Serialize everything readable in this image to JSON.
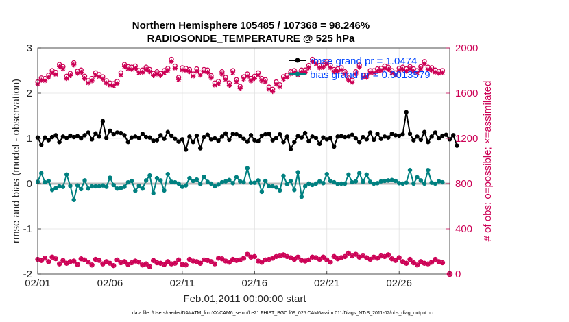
{
  "chart_data": {
    "type": "line",
    "title_line1": "Northern Hemisphere 105485 / 107368 = 98.246%",
    "title_line2": "RADIOSONDE_TEMPERATURE @ 525 hPa",
    "xlabel": "Feb.01,2011 00:00:00 start",
    "ylabel_left": "rmse and bias (model - observation)",
    "ylabel_right": "# of obs: o=possible; ×=assimilated",
    "footer": "data file: /Users/raeder/DAI/ATM_forcXX/CAM6_setup/f.e21.FHIST_BGC.f09_025.CAM6assim.011/Diags_NTrS_2011-02/obs_diag_output.nc",
    "xlim": [
      0,
      28.5
    ],
    "x_ticks": [
      0,
      5,
      10,
      15,
      20,
      25
    ],
    "x_tick_labels": [
      "02/01",
      "02/06",
      "02/11",
      "02/16",
      "02/21",
      "02/26"
    ],
    "ylim_left": [
      -2,
      3
    ],
    "y_ticks_left": [
      -2,
      -1,
      0,
      1,
      2,
      3
    ],
    "y_tick_labels_left": [
      "-2",
      "-1",
      "0",
      "1",
      "2",
      "3"
    ],
    "ylim_right": [
      0,
      2000
    ],
    "y_ticks_right": [
      0,
      400,
      800,
      1200,
      1600,
      2000
    ],
    "y_tick_labels_right": [
      "0",
      "400",
      "800",
      "1200",
      "1600",
      "2000"
    ],
    "legend": [
      {
        "label": "rmse grand pr = 1.0474",
        "color": "#000000"
      },
      {
        "label": "bias grand pr = 0.0013579",
        "color": "#008080"
      }
    ],
    "colors": {
      "rmse": "#000000",
      "bias": "#008080",
      "obs": "#cc0055",
      "legend_text": "#0044ff",
      "zero_line": "#bbbbbb",
      "grid": "#e0e0e0"
    },
    "n_points": 113,
    "x_step": 0.25,
    "rmse_values": [
      1.02,
      0.86,
      1.02,
      0.96,
      1.03,
      1.07,
      0.92,
      1.04,
      1.01,
      1.06,
      1.03,
      1.05,
      1.0,
      1.07,
      1.13,
      0.98,
      1.11,
      1.04,
      1.38,
      1.01,
      1.17,
      1.09,
      1.13,
      1.12,
      1.07,
      0.92,
      1.02,
      1.04,
      1.01,
      1.1,
      1.03,
      1.02,
      0.95,
      0.96,
      1.07,
      0.99,
      1.14,
      1.06,
      0.99,
      0.93,
      0.98,
      0.75,
      1.04,
      0.92,
      1.06,
      0.78,
      1.03,
      1.08,
      0.98,
      1.0,
      0.95,
      1.04,
      1.11,
      0.97,
      1.1,
      1.09,
      1.05,
      0.99,
      0.93,
      1.07,
      0.96,
      0.94,
      1.06,
      1.09,
      1.1,
      0.96,
      1.01,
      1.09,
      0.92,
      1.04,
      0.76,
      0.92,
      1.05,
      1.02,
      1.12,
      0.94,
      1.04,
      1.01,
      0.88,
      1.02,
      0.98,
      1.01,
      0.82,
      1.04,
      1.05,
      1.03,
      1.04,
      1.08,
      1.0,
      0.92,
      1.03,
      0.98,
      1.13,
      0.97,
      1.1,
      0.99,
      1.04,
      1.02,
      1.1,
      1.07,
      1.06,
      1.09,
      1.58,
      1.1,
      0.96,
      1.04,
      0.97,
      1.14,
      0.92,
      1.04,
      1.13,
      1.0,
      1.06,
      1.08,
      0.98,
      1.07,
      0.84
    ],
    "bias_values": [
      0.04,
      0.23,
      0.03,
      0.06,
      -0.14,
      -0.1,
      -0.06,
      -0.07,
      0.2,
      -0.05,
      -0.36,
      -0.04,
      -0.12,
      0.07,
      -0.11,
      -0.06,
      -0.06,
      -0.06,
      -0.04,
      -0.07,
      0.13,
      -0.03,
      -0.11,
      -0.1,
      -0.07,
      0.03,
      0.06,
      -0.16,
      -0.05,
      -0.11,
      0.07,
      0.18,
      -0.21,
      0.12,
      0.07,
      -0.15,
      0.21,
      0.04,
      0.03,
      0.0,
      -0.07,
      -0.04,
      0.12,
      0.06,
      0.09,
      -0.01,
      0.15,
      0.04,
      0.0,
      -0.06,
      -0.02,
      0.03,
      0.05,
      0.08,
      0.01,
      0.14,
      0.05,
      0.03,
      0.34,
      0.02,
      0.02,
      0.07,
      -0.18,
      0.06,
      -0.06,
      -0.06,
      -0.08,
      -0.15,
      0.17,
      -0.01,
      0.06,
      -0.14,
      0.25,
      -0.29,
      -0.06,
      0.0,
      -0.03,
      0.0,
      0.05,
      0.01,
      0.21,
      0.06,
      0.03,
      -0.01,
      0.0,
      0.0,
      0.2,
      0.03,
      0.05,
      0.23,
      0.04,
      0.2,
      0.04,
      0.0,
      0.01,
      0.05,
      0.06,
      0.07,
      0.08,
      0.06,
      0.01,
      0.0,
      0.02,
      0.3,
      0.0,
      0.14,
      0.07,
      0.0,
      0.3,
      0.02,
      0.0,
      0.05,
      0.03
    ],
    "obs_possible": [
      1700,
      1735,
      1730,
      1760,
      1800,
      1785,
      1855,
      1835,
      1750,
      1775,
      1870,
      1795,
      1805,
      1750,
      1710,
      1730,
      1780,
      1765,
      1745,
      1710,
      1690,
      1685,
      1705,
      1780,
      1855,
      1835,
      1830,
      1840,
      1800,
      1805,
      1830,
      1810,
      1775,
      1790,
      1775,
      1800,
      1820,
      1900,
      1840,
      1740,
      1825,
      1820,
      1810,
      1770,
      1815,
      1780,
      1810,
      1805,
      1755,
      1690,
      1705,
      1790,
      1740,
      1690,
      1800,
      1720,
      1660,
      1745,
      1770,
      1730,
      1750,
      1780,
      1730,
      1720,
      1655,
      1635,
      1700,
      1675,
      1745,
      1760,
      1790,
      1800,
      1780,
      1805,
      1805,
      1845,
      1900,
      1880,
      1845,
      1850,
      1880,
      1845,
      1810,
      1815,
      1825,
      1790,
      1735,
      1715,
      1790,
      1850,
      1760,
      1760,
      1800,
      1800,
      1815,
      1820,
      1840,
      1830,
      1800,
      1780,
      1820,
      1830,
      1815,
      1835,
      1815,
      1800,
      1835,
      1880,
      1830,
      1825,
      1805,
      1795,
      1800
    ],
    "obs_assimilated": [
      1680,
      1715,
      1710,
      1740,
      1780,
      1765,
      1835,
      1815,
      1730,
      1755,
      1850,
      1775,
      1785,
      1730,
      1690,
      1710,
      1760,
      1745,
      1725,
      1690,
      1670,
      1665,
      1685,
      1760,
      1835,
      1815,
      1810,
      1820,
      1780,
      1785,
      1810,
      1790,
      1755,
      1770,
      1755,
      1780,
      1800,
      1880,
      1820,
      1720,
      1805,
      1800,
      1790,
      1750,
      1795,
      1760,
      1790,
      1785,
      1735,
      1670,
      1685,
      1770,
      1720,
      1670,
      1780,
      1700,
      1640,
      1725,
      1750,
      1710,
      1730,
      1760,
      1710,
      1700,
      1635,
      1615,
      1680,
      1655,
      1725,
      1740,
      1770,
      1780,
      1760,
      1785,
      1785,
      1825,
      1880,
      1860,
      1825,
      1830,
      1860,
      1825,
      1790,
      1795,
      1805,
      1770,
      1715,
      1695,
      1770,
      1830,
      1740,
      1740,
      1780,
      1780,
      1795,
      1800,
      1820,
      1810,
      1780,
      1760,
      1800,
      1810,
      1795,
      1815,
      1795,
      1780,
      1815,
      1860,
      1810,
      1805,
      1785,
      1775,
      1780
    ],
    "obs_bottom": [
      130,
      120,
      140,
      110,
      150,
      135,
      90,
      120,
      95,
      110,
      115,
      85,
      135,
      125,
      105,
      80,
      130,
      120,
      90,
      110,
      95,
      75,
      125,
      100,
      110,
      85,
      100,
      115,
      105,
      80,
      90,
      65,
      120,
      100,
      95,
      85,
      110,
      90,
      95,
      125,
      85,
      80,
      130,
      115,
      110,
      95,
      125,
      120,
      110,
      90,
      140,
      135,
      115,
      105,
      130,
      120,
      125,
      140,
      175,
      150,
      155,
      115,
      105,
      125,
      130,
      140,
      155,
      160,
      170,
      155,
      145,
      130,
      150,
      120,
      115,
      125,
      150,
      145,
      130,
      150,
      125,
      105,
      155,
      135,
      145,
      155,
      185,
      160,
      175,
      150,
      160,
      145,
      130,
      150,
      140,
      160,
      155,
      170,
      135,
      120,
      145,
      110,
      95,
      130,
      100,
      80,
      110,
      95,
      90,
      105,
      130,
      110,
      100
    ],
    "obs_bottom_last": 0
  }
}
